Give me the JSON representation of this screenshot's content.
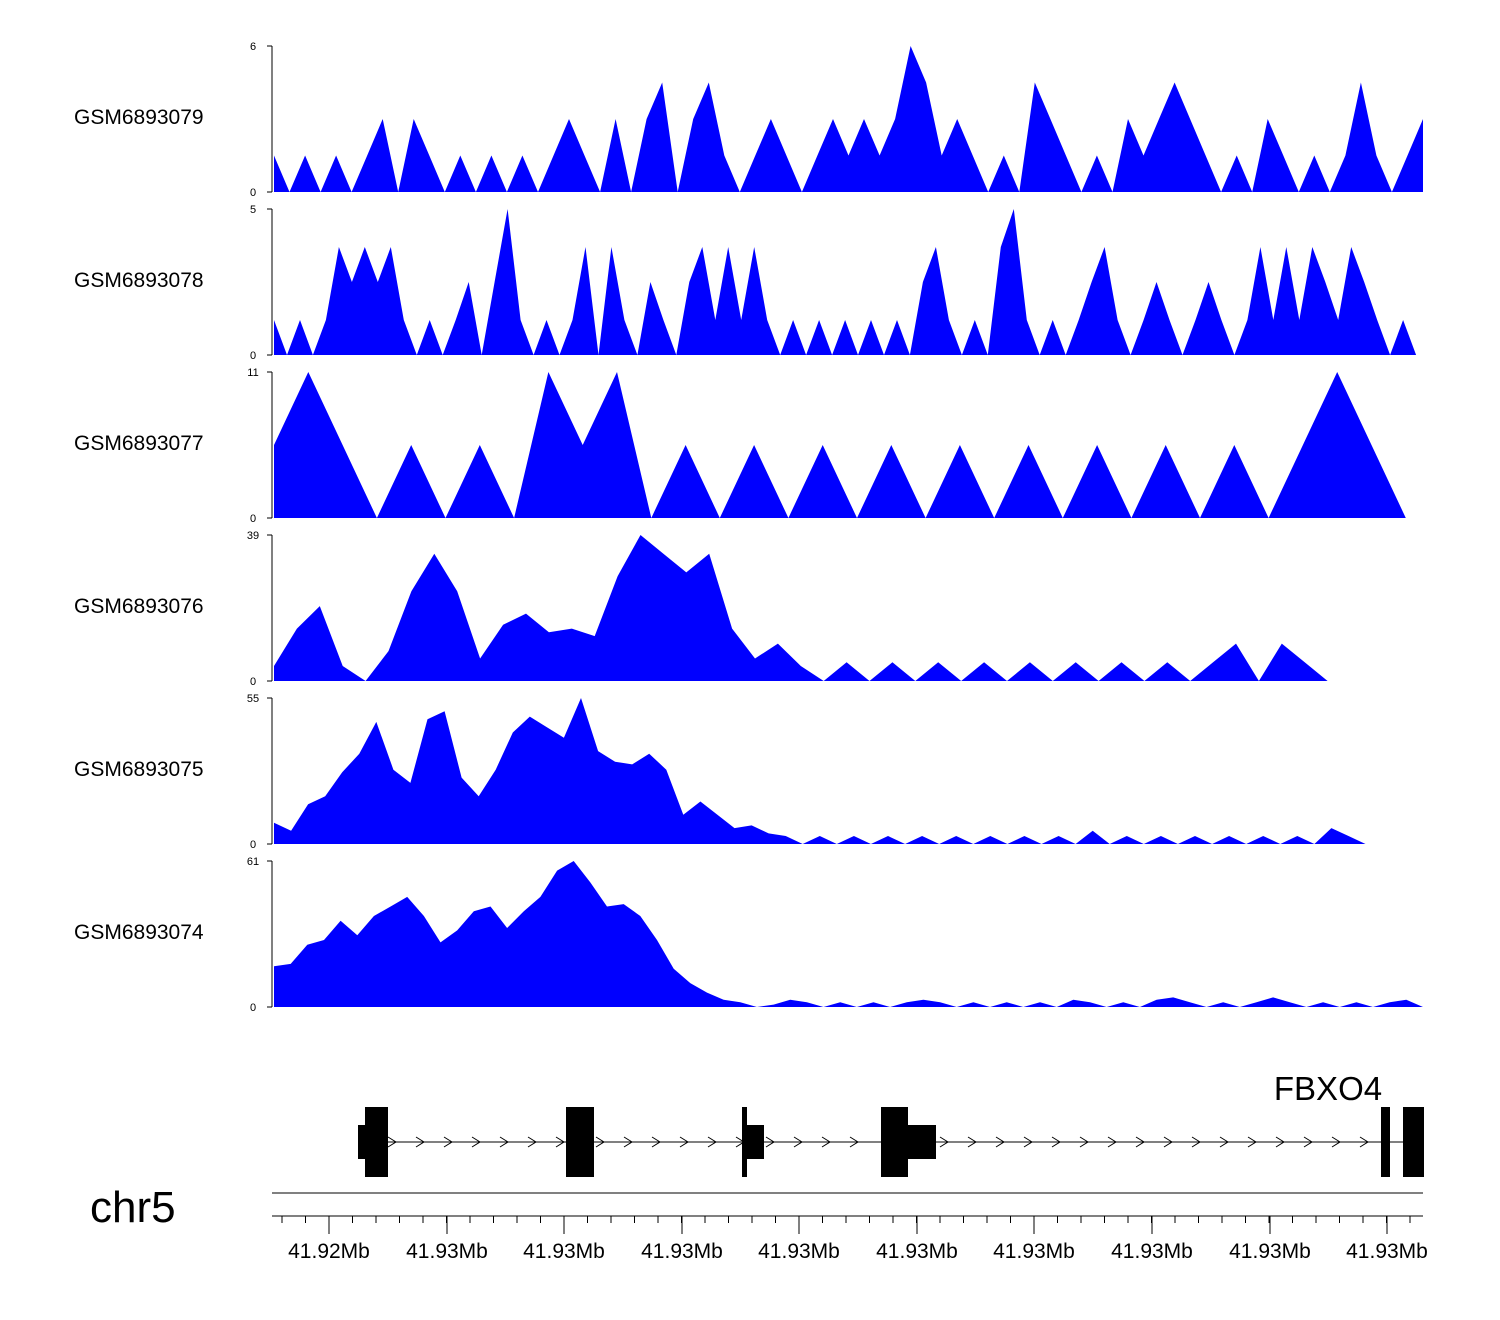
{
  "chart_data": {
    "type": "area",
    "title": "",
    "chromosome": "chr5",
    "fill_color": "#0000ff",
    "x_tick_labels": [
      "41.92Mb",
      "41.93Mb",
      "41.93Mb",
      "41.93Mb",
      "41.93Mb",
      "41.93Mb",
      "41.93Mb",
      "41.93Mb",
      "41.93Mb",
      "41.93Mb"
    ],
    "tracks": [
      {
        "name": "GSM6893079",
        "ymax": 6,
        "ymin_label": "0",
        "ymax_label": "6",
        "values": [
          1.5,
          0,
          1.5,
          0,
          1.5,
          0,
          1.5,
          3,
          0,
          3,
          1.5,
          0,
          1.5,
          0,
          1.5,
          0,
          1.5,
          0,
          1.5,
          3,
          1.5,
          0,
          3,
          0,
          3,
          4.5,
          0,
          3,
          4.5,
          1.5,
          0,
          1.5,
          3,
          1.5,
          0,
          1.5,
          3,
          1.5,
          3,
          1.5,
          3,
          6,
          4.5,
          1.5,
          3,
          1.5,
          0,
          1.5,
          0,
          4.5,
          3,
          1.5,
          0,
          1.5,
          0,
          3,
          1.5,
          3,
          4.5,
          3,
          1.5,
          0,
          1.5,
          0,
          3,
          1.5,
          0,
          1.5,
          0,
          1.5,
          4.5,
          1.5,
          0,
          1.5,
          3
        ]
      },
      {
        "name": "GSM6893078",
        "ymax": 5,
        "ymin_label": "0",
        "ymax_label": "5",
        "values": [
          1.2,
          0,
          1.2,
          0,
          1.2,
          3.7,
          2.5,
          3.7,
          2.5,
          3.7,
          1.2,
          0,
          1.2,
          0,
          1.2,
          2.5,
          0,
          2.5,
          5,
          1.2,
          0,
          1.2,
          0,
          1.2,
          3.7,
          0,
          3.7,
          1.2,
          0,
          2.5,
          1.2,
          0,
          2.5,
          3.7,
          1.2,
          3.7,
          1.2,
          3.7,
          1.2,
          0,
          1.2,
          0,
          1.2,
          0,
          1.2,
          0,
          1.2,
          0,
          1.2,
          0,
          2.5,
          3.7,
          1.2,
          0,
          1.2,
          0,
          3.7,
          5,
          1.2,
          0,
          1.2,
          0,
          1.2,
          2.5,
          3.7,
          1.2,
          0,
          1.2,
          2.5,
          1.2,
          0,
          1.2,
          2.5,
          1.2,
          0,
          1.2,
          3.7,
          1.2,
          3.7,
          1.2,
          3.7,
          2.5,
          1.2,
          3.7,
          2.5,
          1.2,
          0,
          1.2,
          0
        ]
      },
      {
        "name": "GSM6893077",
        "ymax": 11,
        "ymin_label": "0",
        "ymax_label": "11",
        "values": [
          5.5,
          11,
          5.5,
          0,
          5.5,
          0,
          5.5,
          0,
          11,
          5.5,
          11,
          0,
          5.5,
          0,
          5.5,
          0,
          5.5,
          0,
          5.5,
          0,
          5.5,
          0,
          5.5,
          0,
          5.5,
          0,
          5.5,
          0,
          5.5,
          0,
          5.5,
          11,
          5.5,
          0
        ]
      },
      {
        "name": "GSM6893076",
        "ymax": 39,
        "ymin_label": "0",
        "ymax_label": "39",
        "values": [
          4,
          14,
          20,
          4,
          0,
          8,
          24,
          34,
          24,
          6,
          15,
          18,
          13,
          14,
          12,
          28,
          39,
          34,
          29,
          34,
          14,
          6,
          10,
          4,
          0,
          5,
          0,
          5,
          0,
          5,
          0,
          5,
          0,
          5,
          0,
          5,
          0,
          5,
          0,
          5,
          0,
          5,
          10,
          0,
          10,
          5,
          0
        ]
      },
      {
        "name": "GSM6893075",
        "ymax": 55,
        "ymin_label": "0",
        "ymax_label": "55",
        "values": [
          8,
          5,
          15,
          18,
          27,
          34,
          46,
          28,
          23,
          47,
          50,
          25,
          18,
          28,
          42,
          48,
          44,
          40,
          55,
          35,
          31,
          30,
          34,
          28,
          11,
          16,
          11,
          6,
          7,
          4,
          3,
          0,
          3,
          0,
          3,
          0,
          3,
          0,
          3,
          0,
          3,
          0,
          3,
          0,
          3,
          0,
          3,
          0,
          5,
          0,
          3,
          0,
          3,
          0,
          3,
          0,
          3,
          0,
          3,
          0,
          3,
          0,
          6,
          3,
          0
        ]
      },
      {
        "name": "GSM6893074",
        "ymax": 61,
        "ymin_label": "0",
        "ymax_label": "61",
        "values": [
          17,
          18,
          26,
          28,
          36,
          30,
          38,
          42,
          46,
          38,
          27,
          32,
          40,
          42,
          33,
          40,
          46,
          57,
          61,
          52,
          42,
          43,
          38,
          28,
          16,
          10,
          6,
          3,
          2,
          0,
          1,
          3,
          2,
          0,
          2,
          0,
          2,
          0,
          2,
          3,
          2,
          0,
          2,
          0,
          2,
          0,
          2,
          0,
          3,
          2,
          0,
          2,
          0,
          3,
          4,
          2,
          0,
          2,
          0,
          2,
          4,
          2,
          0,
          2,
          0,
          2,
          0,
          2,
          3,
          0
        ]
      }
    ],
    "gene": {
      "name": "FBXO4",
      "strand": "+"
    }
  }
}
